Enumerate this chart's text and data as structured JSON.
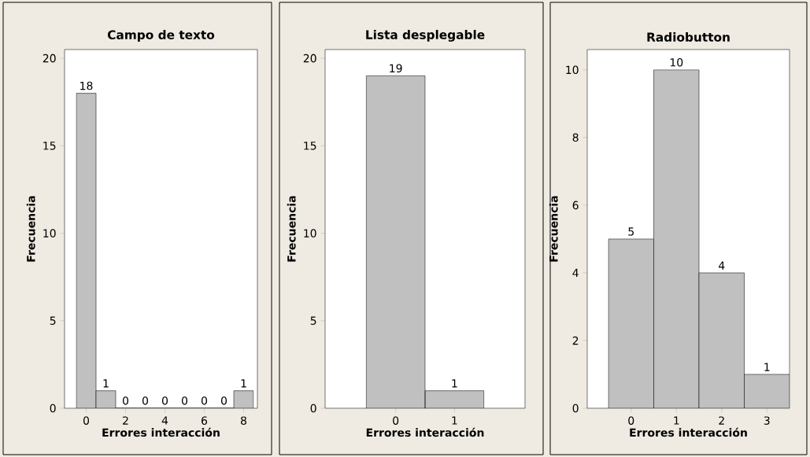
{
  "chart_data": [
    {
      "type": "histogram",
      "title": "Campo de texto",
      "xlabel": "Errores interacción",
      "ylabel": "Frecuencia",
      "bins": [
        -0.5,
        0.5,
        1.5,
        2.5,
        3.5,
        4.5,
        5.5,
        6.5,
        7.5,
        8.5
      ],
      "values": [
        18,
        1,
        0,
        0,
        0,
        0,
        0,
        0,
        1
      ],
      "color": "#c0c0c0",
      "xlim": [
        -1.1,
        8.7
      ],
      "ylim": [
        0,
        20.5
      ],
      "xticks": [
        0,
        2,
        4,
        6,
        8
      ],
      "yticks": [
        0,
        5,
        10,
        15,
        20
      ],
      "data_labels": true
    },
    {
      "type": "histogram",
      "title": "Lista desplegable",
      "xlabel": "Errores interacción",
      "ylabel": "Frecuencia",
      "bins": [
        -0.5,
        0.5,
        1.5
      ],
      "values": [
        19,
        1
      ],
      "color": "#c0c0c0",
      "xlim": [
        -1.2,
        2.2
      ],
      "ylim": [
        0,
        20.5
      ],
      "xticks": [
        0,
        1
      ],
      "yticks": [
        0,
        5,
        10,
        15,
        20
      ],
      "data_labels": true
    },
    {
      "type": "histogram",
      "title": "Radiobutton",
      "xlabel": "Errores interacción",
      "ylabel": "Frecuencia",
      "bins": [
        -0.5,
        0.5,
        1.5,
        2.5,
        3.5
      ],
      "values": [
        5,
        10,
        4,
        1
      ],
      "color": "#c0c0c0",
      "xlim": [
        -0.97,
        3.5
      ],
      "ylim": [
        0,
        10.6
      ],
      "xticks": [
        0,
        1,
        2,
        3
      ],
      "yticks": [
        0,
        2,
        4,
        6,
        8,
        10
      ],
      "data_labels": true
    }
  ]
}
